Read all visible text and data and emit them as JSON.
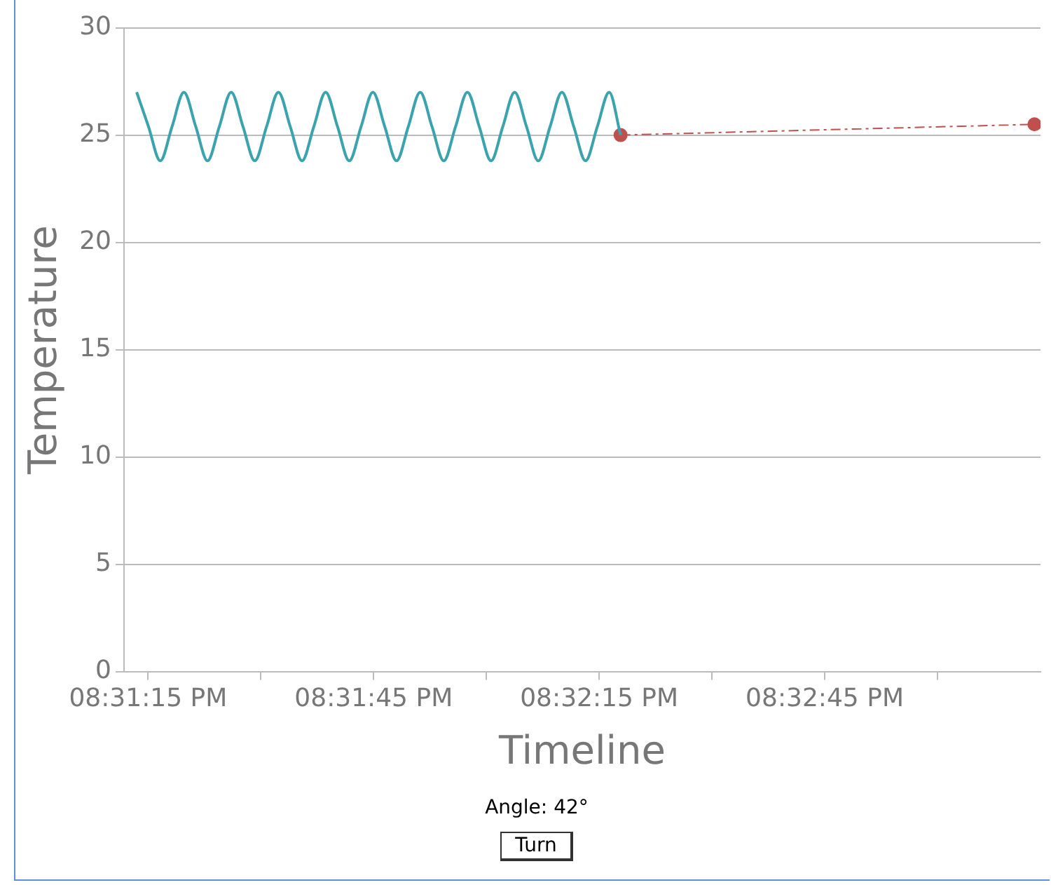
{
  "chart_data": {
    "type": "line",
    "xlabel": "Timeline",
    "ylabel": "Temperature",
    "grid": "y",
    "xlim": [
      20.519944,
      20.553806
    ],
    "ylim": [
      0,
      30
    ],
    "xticks": [
      {
        "value": 20.520833,
        "label": "08:31:15 PM"
      },
      {
        "value": 20.525,
        "label": null
      },
      {
        "value": 20.529167,
        "label": "08:31:45 PM"
      },
      {
        "value": 20.533333,
        "label": null
      },
      {
        "value": 20.5375,
        "label": "08:32:15 PM"
      },
      {
        "value": 20.541667,
        "label": null
      },
      {
        "value": 20.545833,
        "label": "08:32:45 PM"
      },
      {
        "value": 20.55,
        "label": null
      }
    ],
    "yticks": [
      0,
      5,
      10,
      15,
      20,
      25,
      30
    ],
    "annotations": [
      "Angle: 42°",
      "Turn"
    ],
    "series": [
      {
        "type": "line",
        "color": "#3aa3ad",
        "marker": "none",
        "line_style": "solid",
        "x": [
          20.520411,
          20.520847,
          20.521284,
          20.52172,
          20.522157,
          20.522593,
          20.52303,
          20.523466,
          20.523903,
          20.524339,
          20.524776,
          20.525212,
          20.525648,
          20.526085,
          20.526521,
          20.526958,
          20.527394,
          20.527831,
          20.528267,
          20.528704,
          20.52914,
          20.529576,
          20.530013,
          20.530449,
          20.530886,
          20.531322,
          20.531759,
          20.532195,
          20.532632,
          20.533068,
          20.533505,
          20.533941,
          20.534377,
          20.534814,
          20.53525,
          20.535687,
          20.536123,
          20.53656,
          20.536996,
          20.537433,
          20.537869,
          20.538291
        ],
        "values": [
          27.0,
          25.4,
          23.8,
          25.4,
          27.0,
          25.4,
          23.8,
          25.4,
          27.0,
          25.4,
          23.8,
          25.4,
          27.0,
          25.4,
          23.8,
          25.4,
          27.0,
          25.4,
          23.8,
          25.4,
          27.0,
          25.4,
          23.8,
          25.4,
          27.0,
          25.4,
          23.8,
          25.4,
          27.0,
          25.4,
          23.8,
          25.4,
          27.0,
          25.4,
          23.8,
          25.4,
          27.0,
          25.4,
          23.8,
          25.4,
          27.0,
          25.0
        ]
      },
      {
        "type": "line",
        "color": "#c0504d",
        "marker": "circle",
        "line_style": "dashed",
        "x": [
          20.538291,
          20.553583
        ],
        "values": [
          25.0,
          25.5
        ]
      }
    ]
  }
}
